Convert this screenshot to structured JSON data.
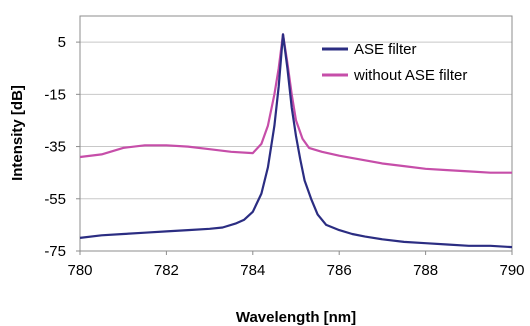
{
  "chart_data": {
    "type": "line",
    "xlabel": "Wavelength [nm]",
    "ylabel": "Intensity [dB]",
    "xlim": [
      780,
      790
    ],
    "ylim": [
      -75,
      15
    ],
    "x_ticks": [
      780,
      782,
      784,
      786,
      788,
      790
    ],
    "x_tick_labels": [
      "780",
      "782",
      "784",
      "786",
      "788",
      "790"
    ],
    "y_ticks": [
      5,
      -15,
      -35,
      -55,
      -75
    ],
    "y_tick_labels": [
      "5",
      "-15",
      "-35",
      "-55",
      "-75"
    ],
    "grid": "horizontal",
    "legend_position": "top-right",
    "series": [
      {
        "name": "ASE filter",
        "color": "#2b2d82",
        "x": [
          780,
          780.5,
          781,
          781.5,
          782,
          782.5,
          783,
          783.3,
          783.6,
          783.8,
          784.0,
          784.2,
          784.35,
          784.5,
          784.6,
          784.7,
          784.8,
          784.9,
          785.0,
          785.1,
          785.2,
          785.35,
          785.5,
          785.7,
          786.0,
          786.3,
          786.6,
          787.0,
          787.5,
          788,
          788.5,
          789,
          789.5,
          790
        ],
        "y": [
          -70,
          -69,
          -68.5,
          -68,
          -67.5,
          -67,
          -66.5,
          -66,
          -64.5,
          -63,
          -60,
          -53,
          -43,
          -27,
          -12,
          8,
          -5,
          -20,
          -31,
          -40,
          -48,
          -55,
          -61,
          -65,
          -67,
          -68.5,
          -69.5,
          -70.5,
          -71.5,
          -72,
          -72.5,
          -73,
          -73,
          -73.5
        ]
      },
      {
        "name": "without ASE filter",
        "color": "#c64ea9",
        "x": [
          780,
          780.5,
          781,
          781.5,
          782,
          782.5,
          783,
          783.5,
          784,
          784.2,
          784.35,
          784.5,
          784.6,
          784.7,
          784.8,
          784.9,
          785.0,
          785.15,
          785.3,
          785.6,
          786,
          786.5,
          787,
          787.5,
          788,
          788.5,
          789,
          789.5,
          790
        ],
        "y": [
          -39,
          -38,
          -35.5,
          -34.5,
          -34.5,
          -35,
          -36,
          -37,
          -37.5,
          -34,
          -27,
          -15,
          -5,
          8,
          -3,
          -15,
          -25,
          -32,
          -35.5,
          -37,
          -38.5,
          -40,
          -41.5,
          -42.5,
          -43.5,
          -44,
          -44.5,
          -45,
          -45
        ]
      }
    ]
  }
}
